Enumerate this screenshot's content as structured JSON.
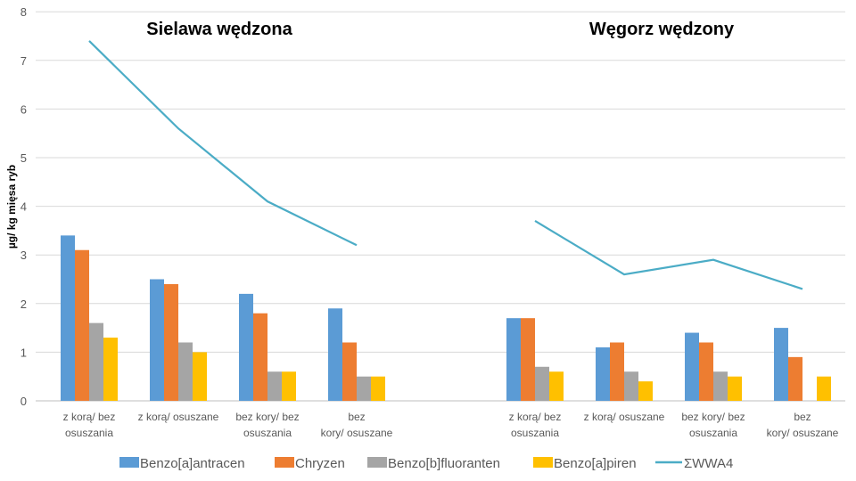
{
  "chart_data": {
    "type": "bar",
    "ylabel": "µg/ kg mięsa ryb",
    "ylim": [
      0,
      8
    ],
    "yticks": [
      0,
      1,
      2,
      3,
      4,
      5,
      6,
      7,
      8
    ],
    "grid": true,
    "legend_position": "bottom",
    "groups": [
      {
        "title": "Sielawa wędzona",
        "categories": [
          "z korą/ bez osuszania",
          "z korą/ osuszane",
          "bez kory/ bez osuszania",
          "bez kory/ osuszane"
        ],
        "bars": [
          [
            3.4,
            3.1,
            1.6,
            1.3
          ],
          [
            2.5,
            2.4,
            1.2,
            1.0
          ],
          [
            2.2,
            1.8,
            0.6,
            0.6
          ],
          [
            1.9,
            1.2,
            0.5,
            0.5
          ]
        ],
        "line": [
          7.4,
          5.6,
          4.1,
          3.2
        ]
      },
      {
        "title": "Węgorz wędzony",
        "categories": [
          "z korą/ bez osuszania",
          "z korą/ osuszane",
          "bez kory/ bez osuszania",
          "bez kory/ osuszane"
        ],
        "bars": [
          [
            1.7,
            1.7,
            0.7,
            0.6
          ],
          [
            1.1,
            1.2,
            0.6,
            0.4
          ],
          [
            1.4,
            1.2,
            0.6,
            0.5
          ],
          [
            1.5,
            0.9,
            0.0,
            0.5
          ]
        ],
        "line": [
          3.7,
          2.6,
          2.9,
          2.3
        ]
      }
    ],
    "series": [
      {
        "name": "Benzo[a]antracen",
        "type": "bar",
        "color": "#5B9BD5"
      },
      {
        "name": "Chryzen",
        "type": "bar",
        "color": "#ED7D31"
      },
      {
        "name": "Benzo[b]fluoranten",
        "type": "bar",
        "color": "#A5A5A5"
      },
      {
        "name": "Benzo[a]piren",
        "type": "bar",
        "color": "#FFC000"
      },
      {
        "name": "ΣWWA4",
        "type": "line",
        "color": "#4BACC6"
      }
    ]
  }
}
